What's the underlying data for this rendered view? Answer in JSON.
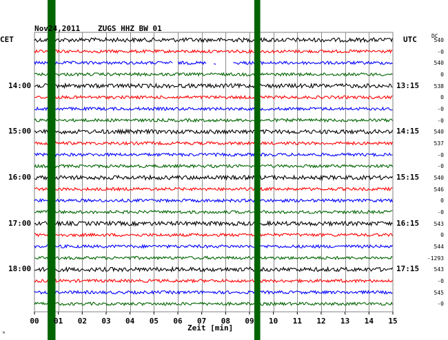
{
  "header": {
    "date": "Nov24,2011",
    "station": "ZUGS HHZ BW 01"
  },
  "labels": {
    "left_tz": "CET",
    "right_tz": "UTC",
    "dc": "DC",
    "xlabel": "Zeit [min]",
    "corner_mark": "ᴺ"
  },
  "chart_data": {
    "type": "line",
    "title": "Nov24,2011   ZUGS HHZ BW 01",
    "xlabel": "Zeit [min]",
    "xlim": [
      0,
      15
    ],
    "x_ticks": [
      "00",
      "01",
      "02",
      "03",
      "04",
      "05",
      "06",
      "07",
      "08",
      "09",
      "10",
      "11",
      "12",
      "13",
      "14",
      "15"
    ],
    "trace_count": 24,
    "trace_colors": [
      "#000000",
      "#ff0000",
      "#0000ff",
      "#006400"
    ],
    "left_time_labels": [
      {
        "trace": 4,
        "label": "14:00"
      },
      {
        "trace": 8,
        "label": "15:00"
      },
      {
        "trace": 12,
        "label": "16:00"
      },
      {
        "trace": 16,
        "label": "17:00"
      },
      {
        "trace": 20,
        "label": "18:00"
      }
    ],
    "right_time_labels": [
      {
        "trace": 4,
        "label": "13:15"
      },
      {
        "trace": 8,
        "label": "14:15"
      },
      {
        "trace": 12,
        "label": "15:15"
      },
      {
        "trace": 16,
        "label": "16:15"
      },
      {
        "trace": 20,
        "label": "17:15"
      }
    ],
    "dc_offsets": [
      "540",
      "-0",
      "540",
      "0",
      "538",
      "0",
      "-0",
      "-0",
      "540",
      "537",
      "-0",
      "-0",
      "540",
      "546",
      "0",
      "-0",
      "543",
      "0",
      "544",
      "-1293",
      "543",
      "-0",
      "545",
      "-0"
    ],
    "gaps": [
      {
        "trace": 2,
        "from_min": 5.8,
        "to_min": 6.0
      },
      {
        "trace": 2,
        "from_min": 7.2,
        "to_min": 7.5
      },
      {
        "trace": 2,
        "from_min": 7.6,
        "to_min": 8.3
      }
    ],
    "highlight_bands": [
      {
        "from_min": 0.55,
        "to_min": 0.88,
        "color": "#006400"
      },
      {
        "from_min": 9.2,
        "to_min": 9.45,
        "color": "#006400"
      }
    ],
    "grid": true
  }
}
